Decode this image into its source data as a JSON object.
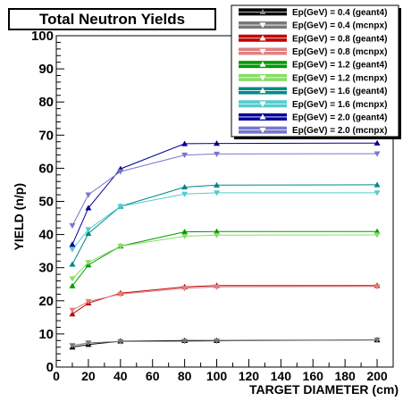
{
  "chart_data": {
    "type": "line",
    "title": "Total Neutron Yields",
    "xlabel": "TARGET DIAMETER (cm)",
    "ylabel": "YIELD (n/p)",
    "xlim": [
      0,
      210
    ],
    "ylim": [
      0,
      100
    ],
    "xticks": [
      0,
      20,
      40,
      60,
      80,
      100,
      120,
      140,
      160,
      180,
      200
    ],
    "yticks": [
      0,
      10,
      20,
      30,
      40,
      50,
      60,
      70,
      80,
      90,
      100
    ],
    "grid": false,
    "legend_position": "top-right",
    "x": [
      10,
      20,
      40,
      80,
      100,
      200
    ],
    "series": [
      {
        "name": "Ep(GeV) = 0.4 (geant4)",
        "marker": "triangle-up",
        "color": "#000000",
        "values": [
          6.0,
          6.8,
          7.8,
          8.0,
          8.0,
          8.2
        ]
      },
      {
        "name": "Ep(GeV) = 0.4 (mcnpx)",
        "marker": "triangle-down",
        "color": "#777777",
        "values": [
          6.5,
          7.3,
          7.7,
          7.8,
          7.9,
          8.2
        ]
      },
      {
        "name": "Ep(GeV) = 0.8 (geant4)",
        "marker": "triangle-up",
        "color": "#c00000",
        "values": [
          16.0,
          19.3,
          22.3,
          24.2,
          24.6,
          24.6
        ]
      },
      {
        "name": "Ep(GeV) = 0.8 (mcnpx)",
        "marker": "triangle-down",
        "color": "#e08080",
        "values": [
          17.2,
          19.8,
          22.0,
          23.8,
          24.2,
          24.3
        ]
      },
      {
        "name": "Ep(GeV) = 1.2 (geant4)",
        "marker": "triangle-up",
        "color": "#009900",
        "values": [
          24.5,
          30.8,
          36.5,
          40.8,
          40.9,
          40.9
        ]
      },
      {
        "name": "Ep(GeV) = 1.2 (mcnpx)",
        "marker": "triangle-down",
        "color": "#88dd66",
        "values": [
          26.7,
          31.6,
          36.5,
          39.5,
          39.8,
          39.9
        ]
      },
      {
        "name": "Ep(GeV) = 1.6 (geant4)",
        "marker": "triangle-up",
        "color": "#008888",
        "values": [
          31.0,
          40.3,
          48.5,
          54.3,
          54.9,
          55.0
        ]
      },
      {
        "name": "Ep(GeV) = 1.6 (mcnpx)",
        "marker": "triangle-down",
        "color": "#55cccc",
        "values": [
          35.5,
          41.5,
          48.5,
          52.2,
          52.6,
          52.6
        ]
      },
      {
        "name": "Ep(GeV) = 2.0 (geant4)",
        "marker": "triangle-up",
        "color": "#000099",
        "values": [
          37.0,
          48.0,
          59.8,
          67.4,
          67.5,
          67.6
        ]
      },
      {
        "name": "Ep(GeV) = 2.0 (mcnpx)",
        "marker": "triangle-down",
        "color": "#7777cc",
        "values": [
          42.7,
          52.0,
          59.0,
          64.0,
          64.3,
          64.4
        ]
      }
    ]
  }
}
